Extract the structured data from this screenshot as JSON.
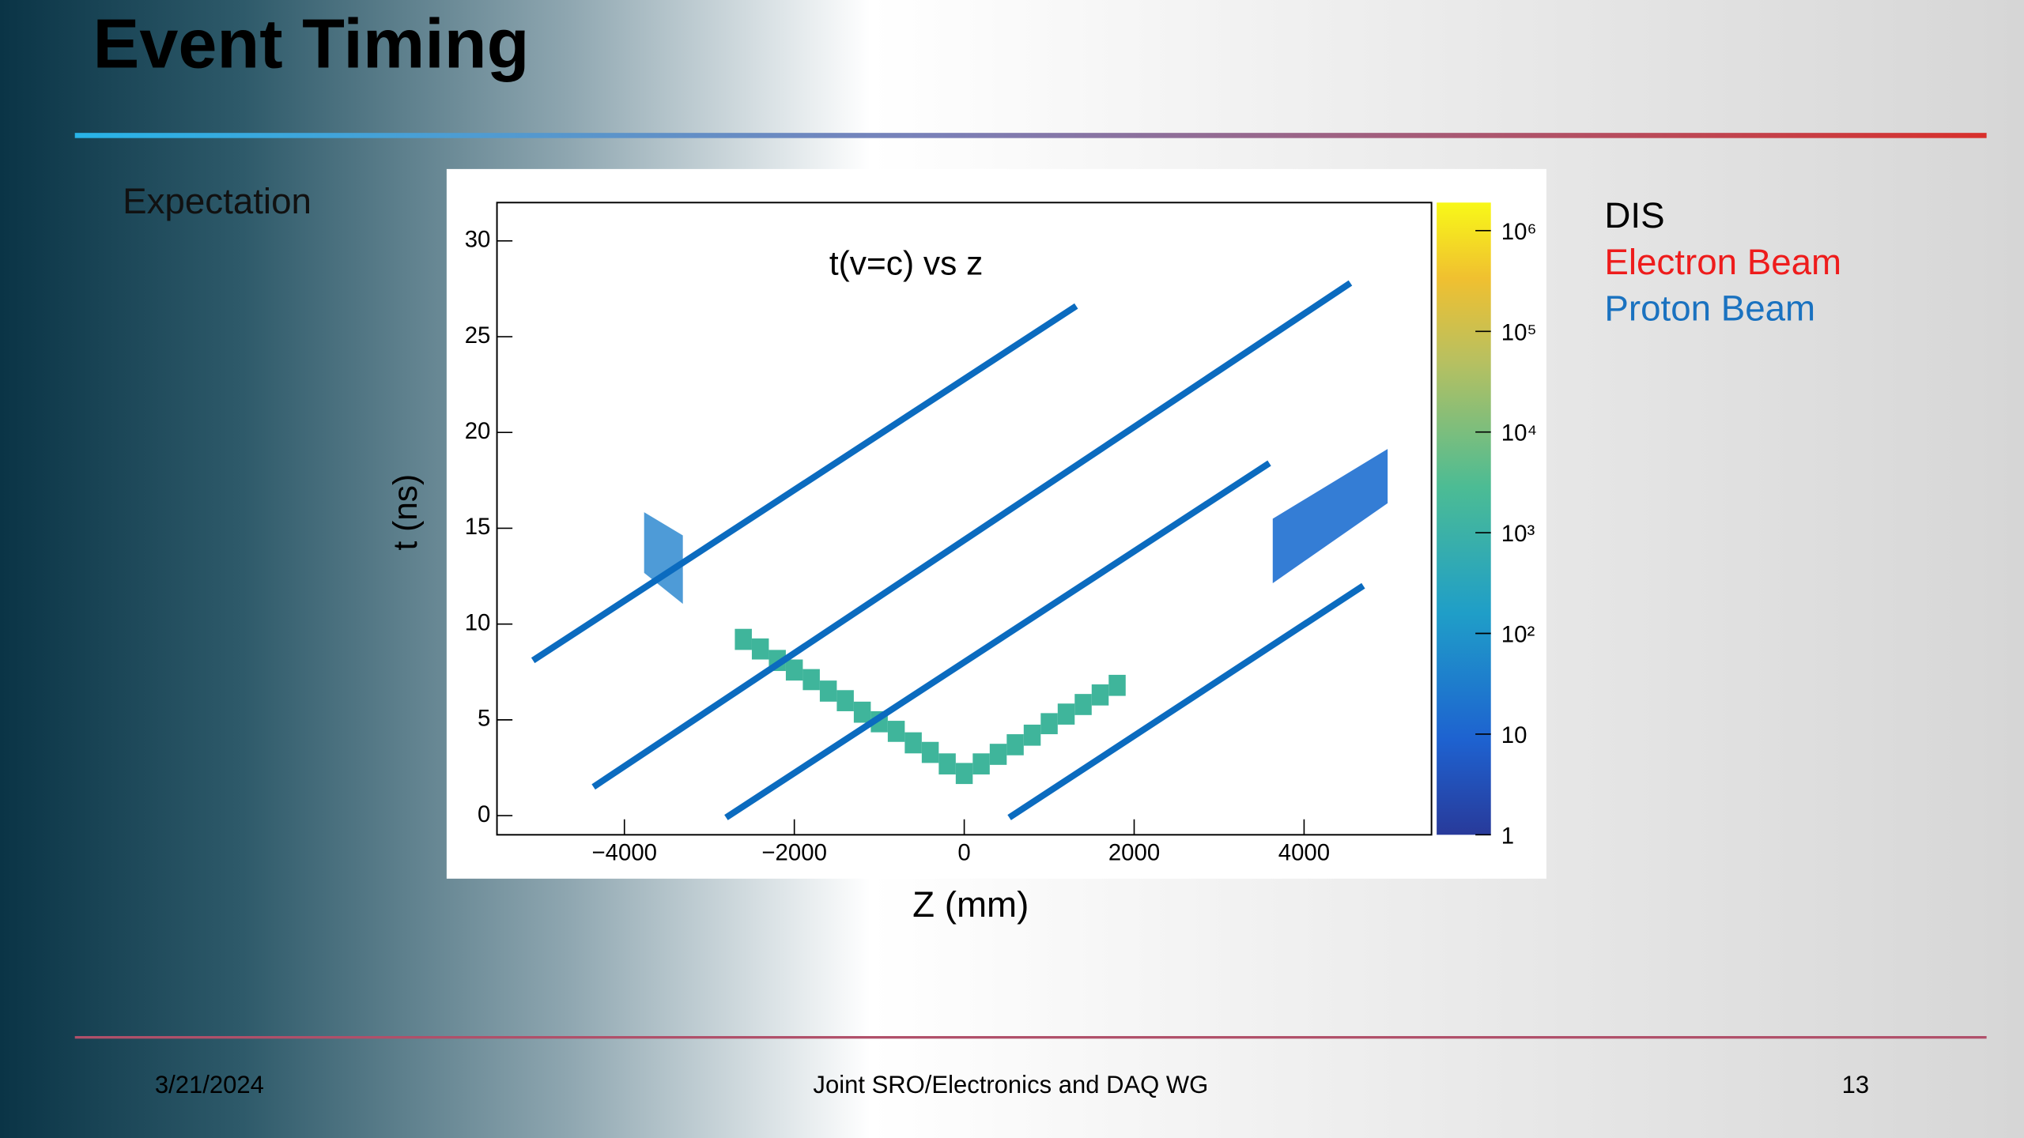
{
  "slide": {
    "title": "Event Timing",
    "subtitle": "Expectation",
    "legend": [
      {
        "label": "DIS",
        "color": "#000000"
      },
      {
        "label": "Electron Beam",
        "color": "#ee1c1c"
      },
      {
        "label": "Proton Beam",
        "color": "#1a72c0"
      }
    ],
    "footer": {
      "date": "3/21/2024",
      "center": "Joint SRO/Electronics and DAQ WG",
      "page": "13"
    }
  },
  "chart_data": {
    "type": "histogram2d",
    "title": "t(v=c) vs z",
    "x_label": "Z (mm)",
    "y_label": "t (ns)",
    "xlim": [
      -5500,
      5500
    ],
    "ylim": [
      -1,
      32
    ],
    "xticks": [
      {
        "value": -4000,
        "label": "−4000"
      },
      {
        "value": -2000,
        "label": "−2000"
      },
      0,
      2000,
      4000
    ],
    "yticks": [
      0,
      5,
      10,
      15,
      20,
      25,
      30
    ],
    "zlim": [
      1,
      1900000
    ],
    "zscale": "log",
    "zticks": [
      1,
      10,
      {
        "value": 100,
        "label": "10²"
      },
      {
        "value": 1000,
        "label": "10³"
      },
      {
        "value": 10000,
        "label": "10⁴"
      },
      {
        "value": 100000,
        "label": "10⁵"
      },
      {
        "value": 1000000,
        "label": "10⁶"
      }
    ],
    "dis": {
      "color": "#3fb59b",
      "x": [
        -2600,
        -2400,
        -2200,
        -2000,
        -1800,
        -1600,
        -1400,
        -1200,
        -1000,
        -800,
        -600,
        -400,
        -200,
        0,
        200,
        400,
        600,
        800,
        1000,
        1200,
        1400,
        1600,
        1800
      ],
      "y": [
        9.2,
        8.7,
        8.1,
        7.6,
        7.1,
        6.5,
        6.0,
        5.4,
        4.9,
        4.4,
        3.8,
        3.3,
        2.7,
        2.2,
        2.7,
        3.2,
        3.7,
        4.2,
        4.8,
        5.3,
        5.8,
        6.3,
        6.8
      ]
    },
    "line_color": "#0b6bbf",
    "lines": [
      {
        "x": [
          -5076,
          1318
        ],
        "y": [
          8.1,
          26.6
        ]
      },
      {
        "x": [
          -4364,
          4545
        ],
        "y": [
          1.5,
          27.8
        ]
      },
      {
        "x": [
          -2803,
          3591
        ],
        "y": [
          -0.1,
          18.4
        ]
      },
      {
        "x": [
          530,
          4697
        ],
        "y": [
          -0.1,
          12.0
        ]
      }
    ]
  }
}
